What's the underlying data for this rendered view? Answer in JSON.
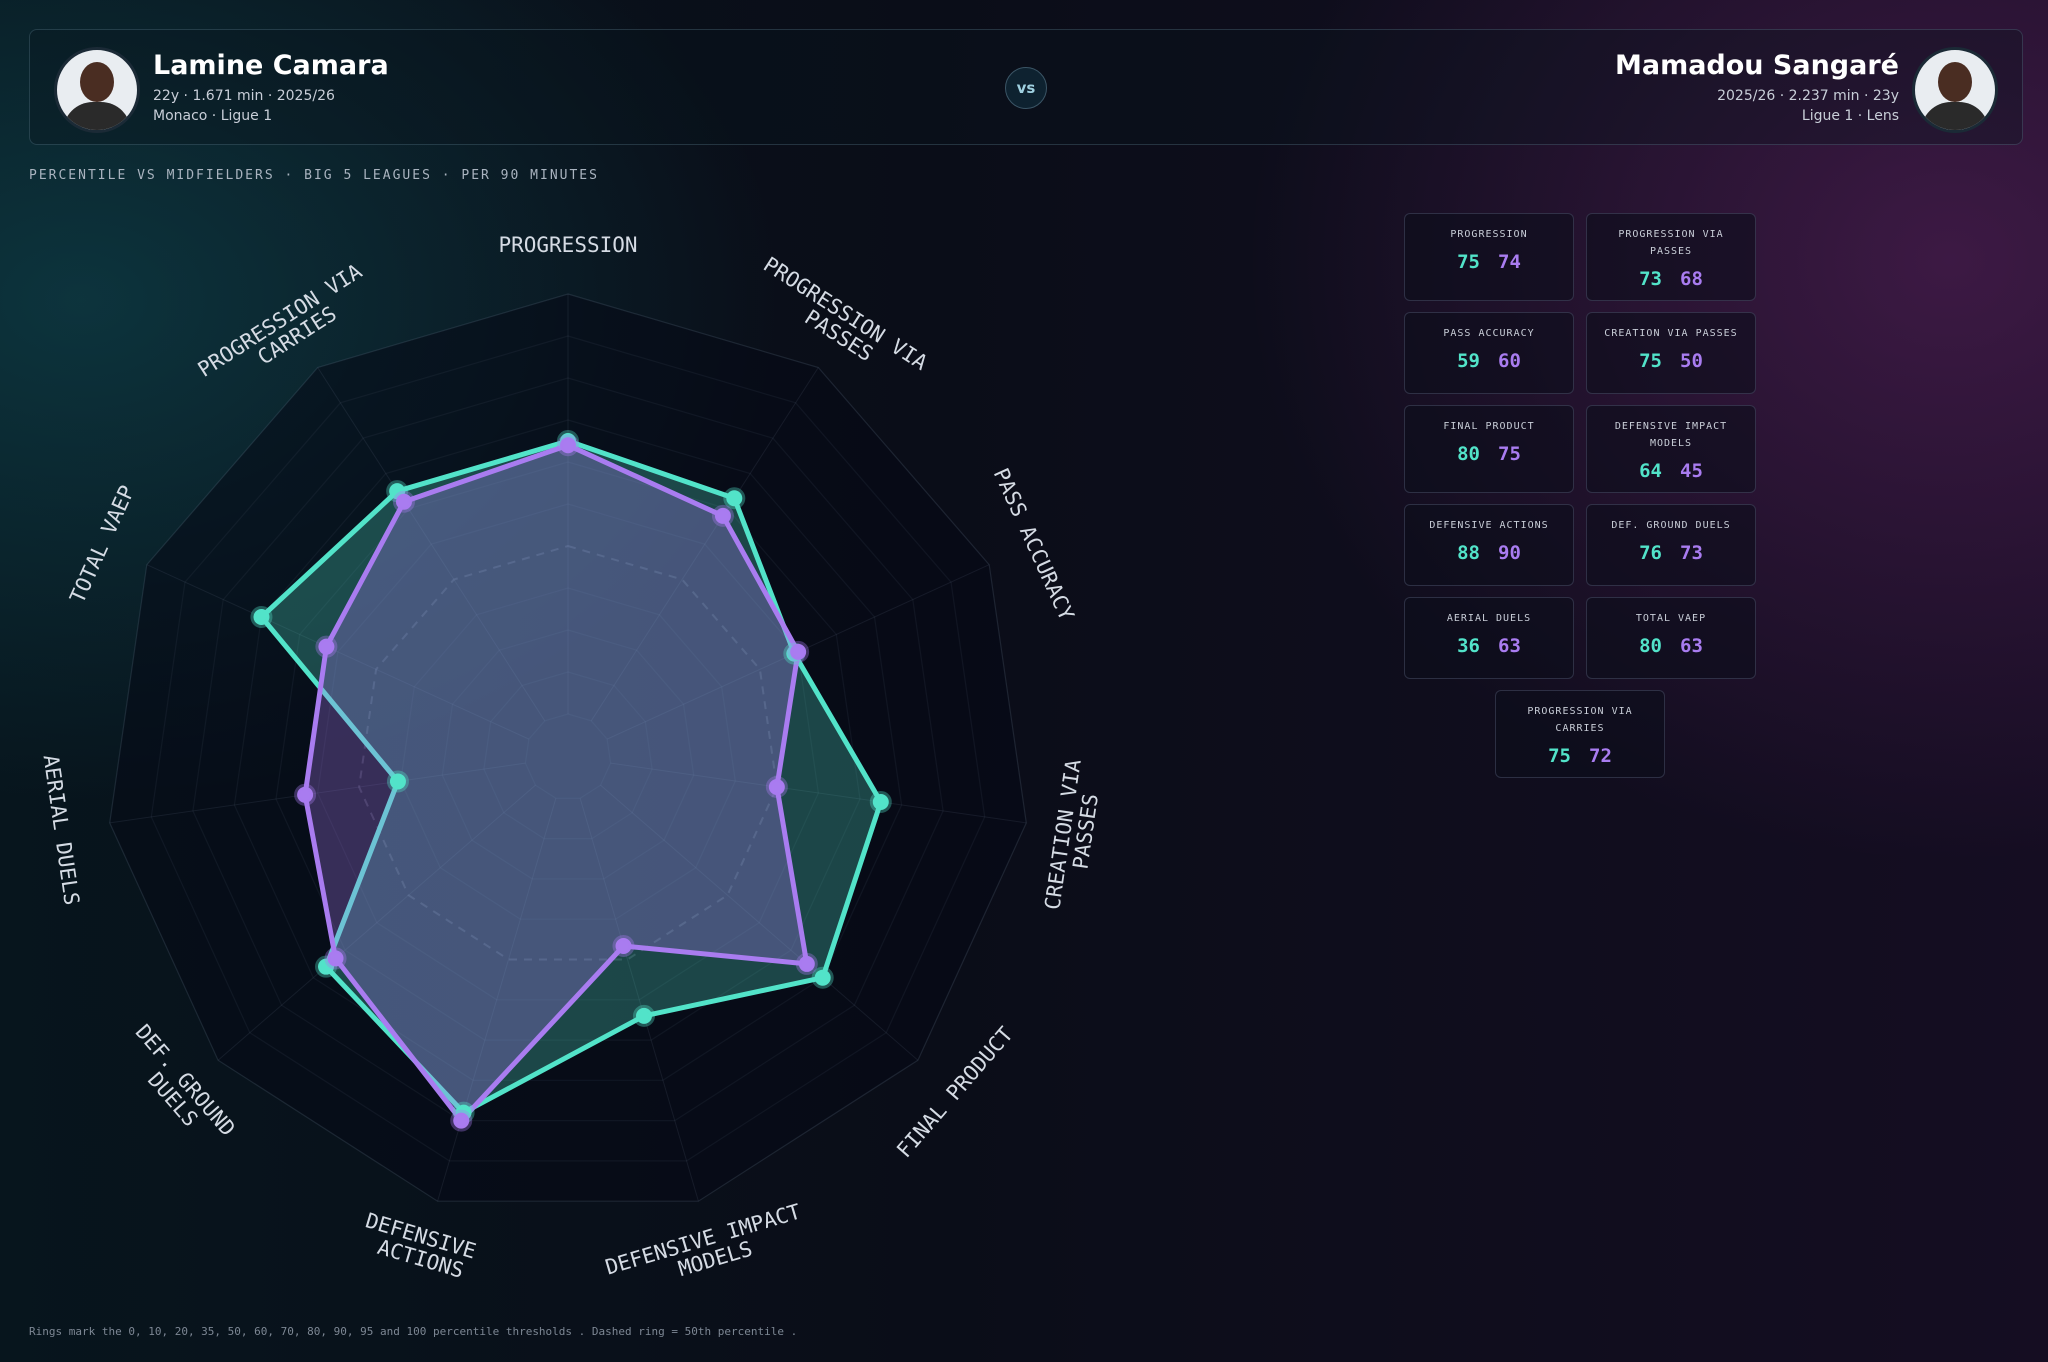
{
  "header": {
    "left": {
      "meta": "22y · 1.671 min · 2025/26",
      "club": "Monaco · Ligue 1"
    },
    "vs": "vs",
    "right": {
      "meta": "2025/26 · 2.237 min · 23y",
      "club": "Ligue 1 · Lens"
    },
    "subtitle": "PERCENTILE VS MIDFIELDERS · BIG 5 LEAGUES · PER 90 MINUTES"
  },
  "chart_data": {
    "type": "radar",
    "categories": [
      "PROGRESSION",
      "PROGRESSION VIA PASSES",
      "PASS ACCURACY",
      "CREATION VIA PASSES",
      "FINAL PRODUCT",
      "DEFENSIVE IMPACT MODELS",
      "DEFENSIVE ACTIONS",
      "DEF. GROUND DUELS",
      "AERIAL DUELS",
      "TOTAL VAEP",
      "PROGRESSION VIA CARRIES"
    ],
    "series": [
      {
        "name": "Lamine Camara",
        "color": "#52e3c9",
        "values": [
          75,
          73,
          59,
          75,
          80,
          64,
          88,
          76,
          36,
          80,
          75
        ]
      },
      {
        "name": "Mamadou Sangaré",
        "color": "#a97cf0",
        "values": [
          74,
          68,
          60,
          50,
          75,
          45,
          90,
          73,
          63,
          63,
          72
        ]
      }
    ],
    "rticks": [
      0,
      10,
      20,
      35,
      50,
      60,
      70,
      80,
      90,
      95,
      100
    ],
    "dashed_tick": 50,
    "note": "Rings mark the 0, 10, 20, 35, 50, 60, 70, 80, 90, 95 and 100 percentile thresholds . Dashed ring = 50th percentile ."
  }
}
